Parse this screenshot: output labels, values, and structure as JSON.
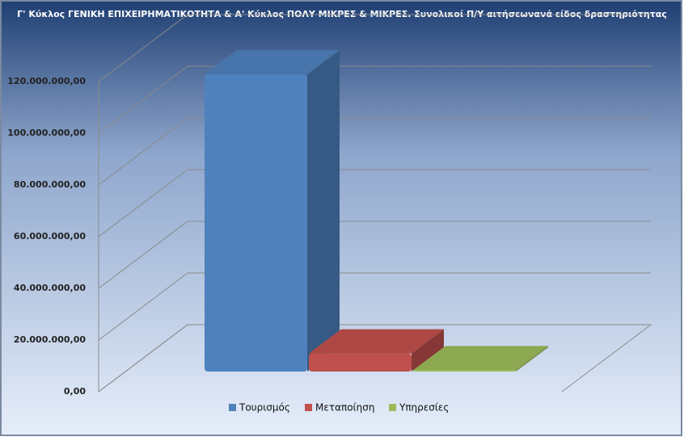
{
  "chart_data": {
    "type": "bar3d",
    "title": "Γ' Κύκλος ΓΕΝΙΚΗ ΕΠΙΧΕΙΡΗΜΑΤΙΚΟΤΗΤΑ & Α' Κύκλος ΠΟΛΥ ΜΙΚΡΕΣ & ΜΙΚΡΕΣ. Συνολικοί Π/Υ  αιτήσεωνανά είδος δραστηριότητας",
    "categories": [
      "Τουρισμός",
      "Μεταποίηση",
      "Υπηρεσίες"
    ],
    "values": [
      115000000,
      7000000,
      500000
    ],
    "colors": [
      "#4f81bd",
      "#c0504d",
      "#9bbb59"
    ],
    "ylim": [
      0,
      120000000
    ],
    "yticks": [
      {
        "value": 0,
        "label": "0,00"
      },
      {
        "value": 20000000,
        "label": "20.000.000,00"
      },
      {
        "value": 40000000,
        "label": "40.000.000,00"
      },
      {
        "value": 60000000,
        "label": "60.000.000,00"
      },
      {
        "value": 80000000,
        "label": "80.000.000,00"
      },
      {
        "value": 100000000,
        "label": "100.000.000,00"
      },
      {
        "value": 120000000,
        "label": "120.000.000,00"
      }
    ],
    "grid": true
  }
}
